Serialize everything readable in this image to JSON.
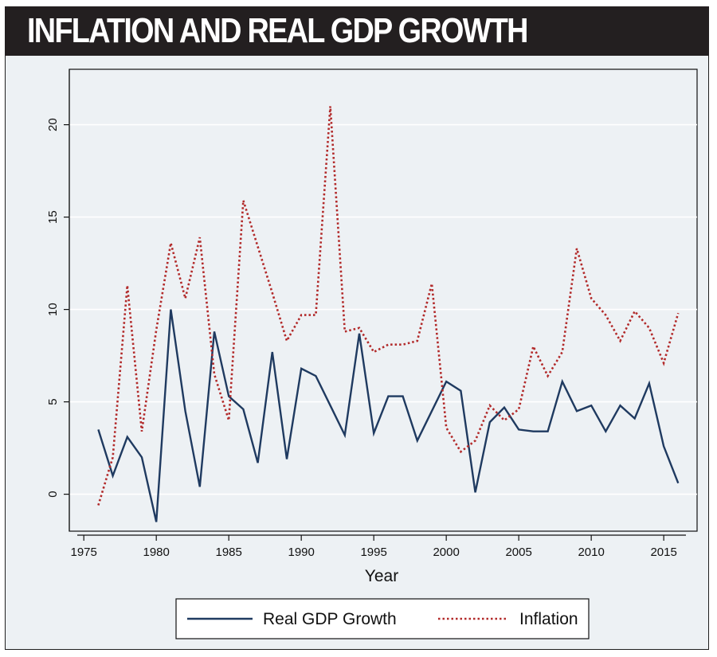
{
  "title": "INFLATION AND REAL GDP GROWTH",
  "colors": {
    "frame_bg": "#edf1f4",
    "title_bg": "#231f20",
    "gdp_line": "#1f3a60",
    "inflation_line": "#b22a2a",
    "grid": "#ffffff"
  },
  "chart_data": {
    "type": "line",
    "title": "",
    "xlabel": "Year",
    "ylabel": "",
    "xlim": [
      1974,
      2017.3
    ],
    "ylim": [
      -2,
      23
    ],
    "xticks": [
      1975,
      1980,
      1985,
      1990,
      1995,
      2000,
      2005,
      2010,
      2015
    ],
    "yticks": [
      0,
      5,
      10,
      15,
      20
    ],
    "grid": true,
    "legend_position": "bottom",
    "x": [
      1976,
      1977,
      1978,
      1979,
      1980,
      1981,
      1982,
      1983,
      1984,
      1985,
      1986,
      1987,
      1988,
      1989,
      1990,
      1991,
      1992,
      1993,
      1994,
      1995,
      1996,
      1997,
      1998,
      1999,
      2000,
      2001,
      2002,
      2003,
      2004,
      2005,
      2006,
      2007,
      2008,
      2009,
      2010,
      2011,
      2012,
      2013,
      2014,
      2015,
      2016
    ],
    "series": [
      {
        "name": "Real GDP Growth",
        "style": "solid",
        "color": "#1f3a60",
        "values": [
          3.5,
          1.0,
          3.1,
          2.0,
          -1.5,
          10.0,
          4.5,
          0.4,
          8.8,
          5.3,
          4.6,
          1.7,
          7.7,
          1.9,
          6.8,
          6.4,
          4.8,
          3.2,
          8.7,
          3.3,
          5.3,
          5.3,
          2.9,
          4.5,
          6.1,
          5.6,
          0.1,
          3.9,
          4.7,
          3.5,
          3.4,
          3.4,
          6.1,
          4.5,
          4.8,
          3.4,
          4.8,
          4.1,
          6.0,
          2.6,
          0.6
        ]
      },
      {
        "name": "Inflation",
        "style": "dotted",
        "color": "#b22a2a",
        "values": [
          -0.6,
          2.0,
          11.3,
          3.4,
          8.9,
          13.6,
          10.6,
          13.9,
          6.5,
          4.0,
          15.9,
          13.4,
          10.9,
          8.3,
          9.7,
          9.7,
          21.0,
          8.8,
          9.0,
          7.7,
          8.1,
          8.1,
          8.3,
          11.4,
          3.6,
          2.3,
          2.9,
          4.8,
          4.0,
          4.6,
          8.0,
          6.4,
          7.7,
          13.3,
          10.6,
          9.7,
          8.3,
          9.9,
          9.0,
          7.1,
          9.8
        ]
      }
    ]
  }
}
